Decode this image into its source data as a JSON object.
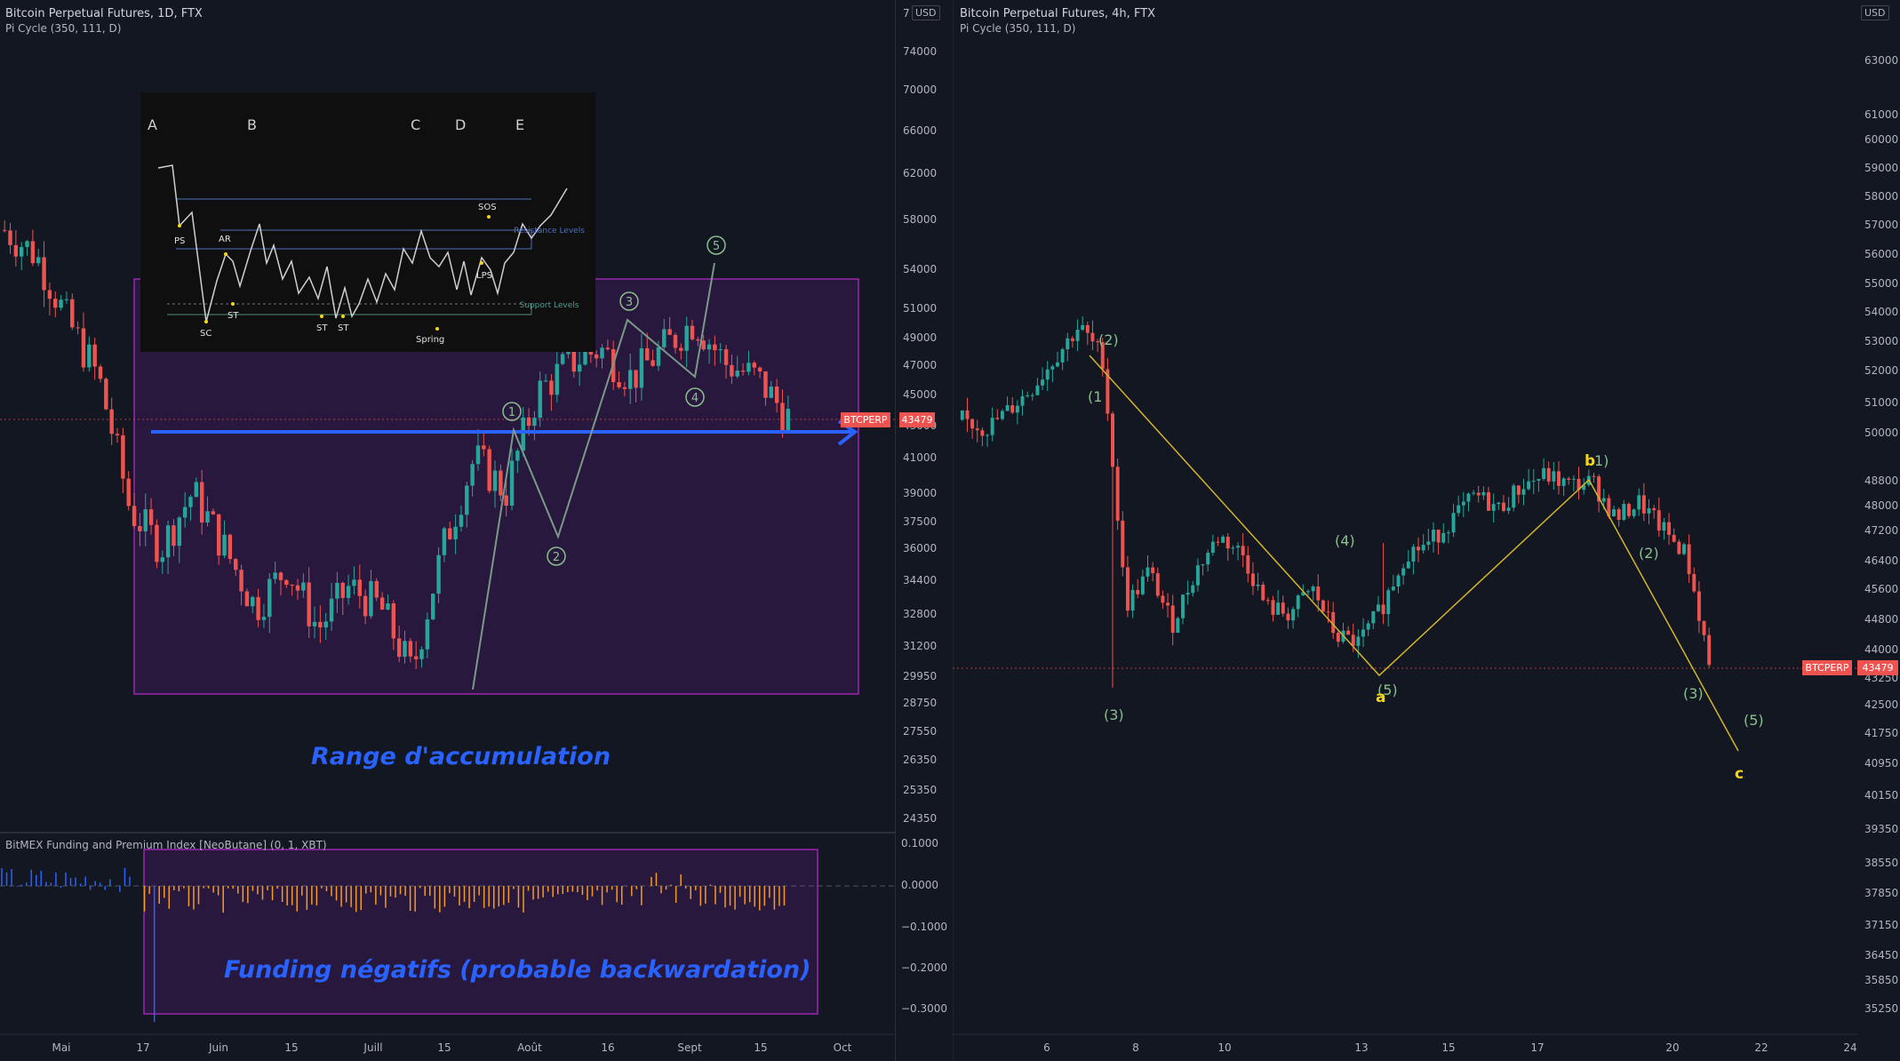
{
  "left_chart": {
    "title": "Bitcoin Perpetual Futures, 1D, FTX",
    "indicator": "Pi Cycle (350, 111, D)",
    "currency": "USD",
    "currency_prefix": "7",
    "price_ticks": [
      "74000",
      "70000",
      "66000",
      "62000",
      "58000",
      "54000",
      "51000",
      "49000",
      "47000",
      "45000",
      "43000",
      "41000",
      "39000",
      "37500",
      "36000",
      "34400",
      "32800",
      "31200",
      "29950",
      "28750",
      "27550",
      "26350",
      "25350",
      "24350"
    ],
    "date_ticks": [
      "Mai",
      "17",
      "Juin",
      "15",
      "Juill",
      "15",
      "Août",
      "16",
      "Sept",
      "15",
      "Oct"
    ],
    "symbol_tag": "BTCPERP",
    "last_price": "43479",
    "range_label": "Range d'accumulation",
    "wave_labels": [
      "1",
      "2",
      "3",
      "4",
      "5"
    ],
    "inset": {
      "phases": [
        "A",
        "B",
        "C",
        "D",
        "E"
      ],
      "events": [
        "PS",
        "SC",
        "AR",
        "ST",
        "ST",
        "ST",
        "Spring",
        "SOS",
        "LPS"
      ],
      "resistance_label": "Resistance Levels",
      "support_label": "Support Levels"
    },
    "funding": {
      "title": "BitMEX Funding and Premium Index [NeoButane] (0, 1, XBT)",
      "ticks": [
        "0.1000",
        "0.0000",
        "−0.1000",
        "−0.2000",
        "−0.3000"
      ],
      "label": "Funding négatifs (probable backwardation)"
    }
  },
  "right_chart": {
    "title": "Bitcoin Perpetual Futures, 4h, FTX",
    "indicator": "Pi Cycle (350, 111, D)",
    "currency": "USD",
    "price_ticks": [
      "63000",
      "61000",
      "60000",
      "59000",
      "58000",
      "57000",
      "56000",
      "55000",
      "54000",
      "53000",
      "52000",
      "51000",
      "50000",
      "48800",
      "48000",
      "47200",
      "46400",
      "45600",
      "44800",
      "44000",
      "43250",
      "42500",
      "41750",
      "40950",
      "40150",
      "39350",
      "38550",
      "37850",
      "37150",
      "36450",
      "35850",
      "35250"
    ],
    "date_ticks": [
      "6",
      "8",
      "10",
      "13",
      "15",
      "17",
      "20",
      "22",
      "24"
    ],
    "symbol_tag": "BTCPERP",
    "last_price": "43479",
    "wave_labels": [
      "(2)",
      "(1",
      "(3)",
      "(4)",
      "(5)",
      "1)",
      "(2)",
      "(3)",
      "(5)"
    ],
    "abc_labels": [
      "a",
      "b",
      "c"
    ]
  },
  "colors": {
    "background": "#131722",
    "up": "#26a69a",
    "down": "#ef5350",
    "range_box": "#7b1fa2",
    "support_line": "#2962ff",
    "text_blue": "#2962ff",
    "wave_green": "#8bbf8f",
    "abc_yellow": "#f5d614",
    "funding_orange": "#f59b22",
    "funding_blue": "#2962ff"
  },
  "chart_data": [
    {
      "type": "candlestick",
      "title": "Bitcoin Perpetual Futures, 1D, FTX",
      "x": [
        "Mai",
        "17",
        "Juin",
        "15",
        "Juill",
        "15",
        "Août",
        "16",
        "Sept",
        "15",
        "Oct"
      ],
      "price_range": [
        24350,
        74000
      ],
      "approx_close_path": [
        57000,
        55000,
        50000,
        46000,
        38000,
        36000,
        39000,
        36000,
        33000,
        35000,
        32000,
        34000,
        33000,
        30000,
        36000,
        41000,
        39000,
        45000,
        47000,
        48000,
        46000,
        48000,
        50000,
        47000,
        46000,
        43479
      ],
      "last": 43479,
      "range_low": 29000,
      "range_high": 53000,
      "support_level": 43000
    },
    {
      "type": "bar",
      "title": "BitMEX Funding and Premium Index [NeoButane] (0, 1, XBT)",
      "y_range": [
        -0.3,
        0.1
      ],
      "note_series": "daily funding, mostly negative inside box"
    },
    {
      "type": "candlestick",
      "title": "Bitcoin Perpetual Futures, 4h, FTX",
      "x": [
        "6",
        "8",
        "10",
        "13",
        "15",
        "17",
        "20",
        "22",
        "24"
      ],
      "price_range": [
        35250,
        63000
      ],
      "last": 43479
    }
  ]
}
